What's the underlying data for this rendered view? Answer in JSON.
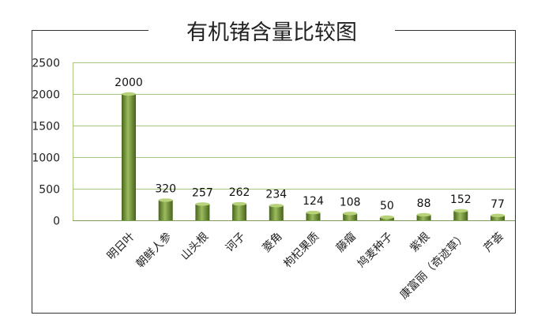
{
  "chart_data": {
    "type": "bar",
    "title": "有机锗含量比较图",
    "categories": [
      "明日叶",
      "朝鲜人参",
      "山头根",
      "诃子",
      "菱角",
      "枸杞果质",
      "藤瘤",
      "鸠麦种子",
      "紫根",
      "康富丽（奇迹草）",
      "芦荟"
    ],
    "values": [
      2000,
      320,
      257,
      262,
      234,
      124,
      108,
      50,
      88,
      152,
      77
    ],
    "ylim": [
      0,
      2500
    ],
    "yticks": [
      0,
      500,
      1000,
      1500,
      2000,
      2500
    ],
    "xlabel": "",
    "ylabel": "",
    "grid": true,
    "legend": "none",
    "colors": {
      "bar_light": "#a9c46a",
      "bar_mid": "#6f9332",
      "bar_dark": "#3f5e17",
      "grid": "#a7c77e",
      "frame": "#333333"
    }
  }
}
